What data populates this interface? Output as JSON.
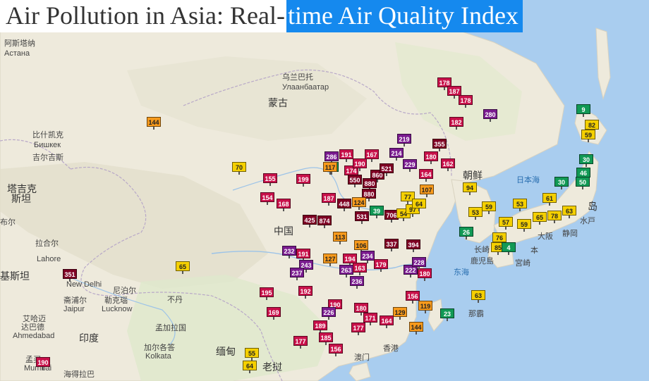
{
  "title": {
    "part1": "Air Pollution in Asia: Real-",
    "part2": "time Air Quality Index"
  },
  "colors": {
    "good": "#119955",
    "moderate": "#f5d000",
    "usg": "#f79a1c",
    "unhealthy": "#c8114a",
    "very_unhealthy": "#7a1b8f",
    "hazardous": "#7e0023",
    "land": "#efe9d9",
    "sea": "#a9cdef"
  },
  "places": [
    {
      "name": "阿斯塔纳"
    },
    {
      "name": "Астана"
    },
    {
      "name": "乌兰巴托"
    },
    {
      "name": "Улаанбаатар"
    },
    {
      "name": "蒙古"
    },
    {
      "name": "比什凯克"
    },
    {
      "name": "Бишкек"
    },
    {
      "name": "吉尔吉斯"
    },
    {
      "name": "塔吉克"
    },
    {
      "name": "斯坦"
    },
    {
      "name": "中国"
    },
    {
      "name": "朝鲜"
    },
    {
      "name": "日本海"
    },
    {
      "name": "东海"
    },
    {
      "name": "长崎"
    },
    {
      "name": "鹿児島"
    },
    {
      "name": "宮崎"
    },
    {
      "name": "大阪"
    },
    {
      "name": "静岡"
    },
    {
      "name": "水戸"
    },
    {
      "name": "那霸"
    },
    {
      "name": "香港"
    },
    {
      "name": "澳门"
    },
    {
      "name": "老挝"
    },
    {
      "name": "缅甸"
    },
    {
      "name": "孟加拉国"
    },
    {
      "name": "印度"
    },
    {
      "name": "不丹"
    },
    {
      "name": "尼泊尔"
    },
    {
      "name": "勒克瑙"
    },
    {
      "name": "Lucknow"
    },
    {
      "name": "斋浦尔"
    },
    {
      "name": "Jaipur"
    },
    {
      "name": "New Delhi"
    },
    {
      "name": "拉合尔"
    },
    {
      "name": "Lahore"
    },
    {
      "name": "基斯坦"
    },
    {
      "name": "艾哈迈"
    },
    {
      "name": "达巴德"
    },
    {
      "name": "Ahmedabad"
    },
    {
      "name": "加尔各答"
    },
    {
      "name": "Kolkata"
    },
    {
      "name": "海得拉巴"
    },
    {
      "name": "孟买"
    },
    {
      "name": "Mumbai"
    },
    {
      "name": "布尔"
    },
    {
      "name": "岛"
    },
    {
      "name": "本"
    }
  ],
  "stations": [
    {
      "aqi": 9
    },
    {
      "aqi": 82
    },
    {
      "aqi": 59
    },
    {
      "aqi": 178
    },
    {
      "aqi": 187
    },
    {
      "aqi": 178
    },
    {
      "aqi": 280
    },
    {
      "aqi": 182
    },
    {
      "aqi": 144
    },
    {
      "aqi": 219
    },
    {
      "aqi": 355
    },
    {
      "aqi": 286
    },
    {
      "aqi": 191
    },
    {
      "aqi": 167
    },
    {
      "aqi": 214
    },
    {
      "aqi": 17
    },
    {
      "aqi": 180
    },
    {
      "aqi": 162
    },
    {
      "aqi": 70
    },
    {
      "aqi": 117
    },
    {
      "aqi": 174
    },
    {
      "aqi": 190
    },
    {
      "aqi": 229
    },
    {
      "aqi": 164
    },
    {
      "aqi": 155
    },
    {
      "aqi": 199
    },
    {
      "aqi": 550
    },
    {
      "aqi": 860
    },
    {
      "aqi": 880
    },
    {
      "aqi": 521
    },
    {
      "aqi": 94
    },
    {
      "aqi": 107
    },
    {
      "aqi": 30
    },
    {
      "aqi": 46
    },
    {
      "aqi": 50
    },
    {
      "aqi": 30
    },
    {
      "aqi": 53
    },
    {
      "aqi": 61
    },
    {
      "aqi": 59
    },
    {
      "aqi": 154
    },
    {
      "aqi": 168
    },
    {
      "aqi": 187
    },
    {
      "aqi": 448
    },
    {
      "aqi": 880
    },
    {
      "aqi": 124
    },
    {
      "aqi": 39
    },
    {
      "aqi": 706
    },
    {
      "aqi": 54
    },
    {
      "aqi": 97
    },
    {
      "aqi": 77
    },
    {
      "aqi": 64
    },
    {
      "aqi": 63
    },
    {
      "aqi": 425
    },
    {
      "aqi": 874
    },
    {
      "aqi": 531
    },
    {
      "aqi": 53
    },
    {
      "aqi": 59
    },
    {
      "aqi": 65
    },
    {
      "aqi": 78
    },
    {
      "aqi": 57
    },
    {
      "aqi": 26
    },
    {
      "aqi": 113
    },
    {
      "aqi": 106
    },
    {
      "aqi": 337
    },
    {
      "aqi": 394
    },
    {
      "aqi": 76
    },
    {
      "aqi": 85
    },
    {
      "aqi": 4
    },
    {
      "aqi": 232
    },
    {
      "aqi": 191
    },
    {
      "aqi": 243
    },
    {
      "aqi": 237
    },
    {
      "aqi": 127
    },
    {
      "aqi": 194
    },
    {
      "aqi": 234
    },
    {
      "aqi": 263
    },
    {
      "aqi": 163
    },
    {
      "aqi": 179
    },
    {
      "aqi": 222
    },
    {
      "aqi": 180
    },
    {
      "aqi": 228
    },
    {
      "aqi": 236
    },
    {
      "aqi": 65
    },
    {
      "aqi": 351
    },
    {
      "aqi": 195
    },
    {
      "aqi": 192
    },
    {
      "aqi": 156
    },
    {
      "aqi": 63
    },
    {
      "aqi": 169
    },
    {
      "aqi": 190
    },
    {
      "aqi": 226
    },
    {
      "aqi": 180
    },
    {
      "aqi": 171
    },
    {
      "aqi": 129
    },
    {
      "aqi": 119
    },
    {
      "aqi": 23
    },
    {
      "aqi": 189
    },
    {
      "aqi": 177
    },
    {
      "aqi": 164
    },
    {
      "aqi": 144
    },
    {
      "aqi": 185
    },
    {
      "aqi": 177
    },
    {
      "aqi": 156
    },
    {
      "aqi": 55
    },
    {
      "aqi": 64
    },
    {
      "aqi": 190
    }
  ]
}
